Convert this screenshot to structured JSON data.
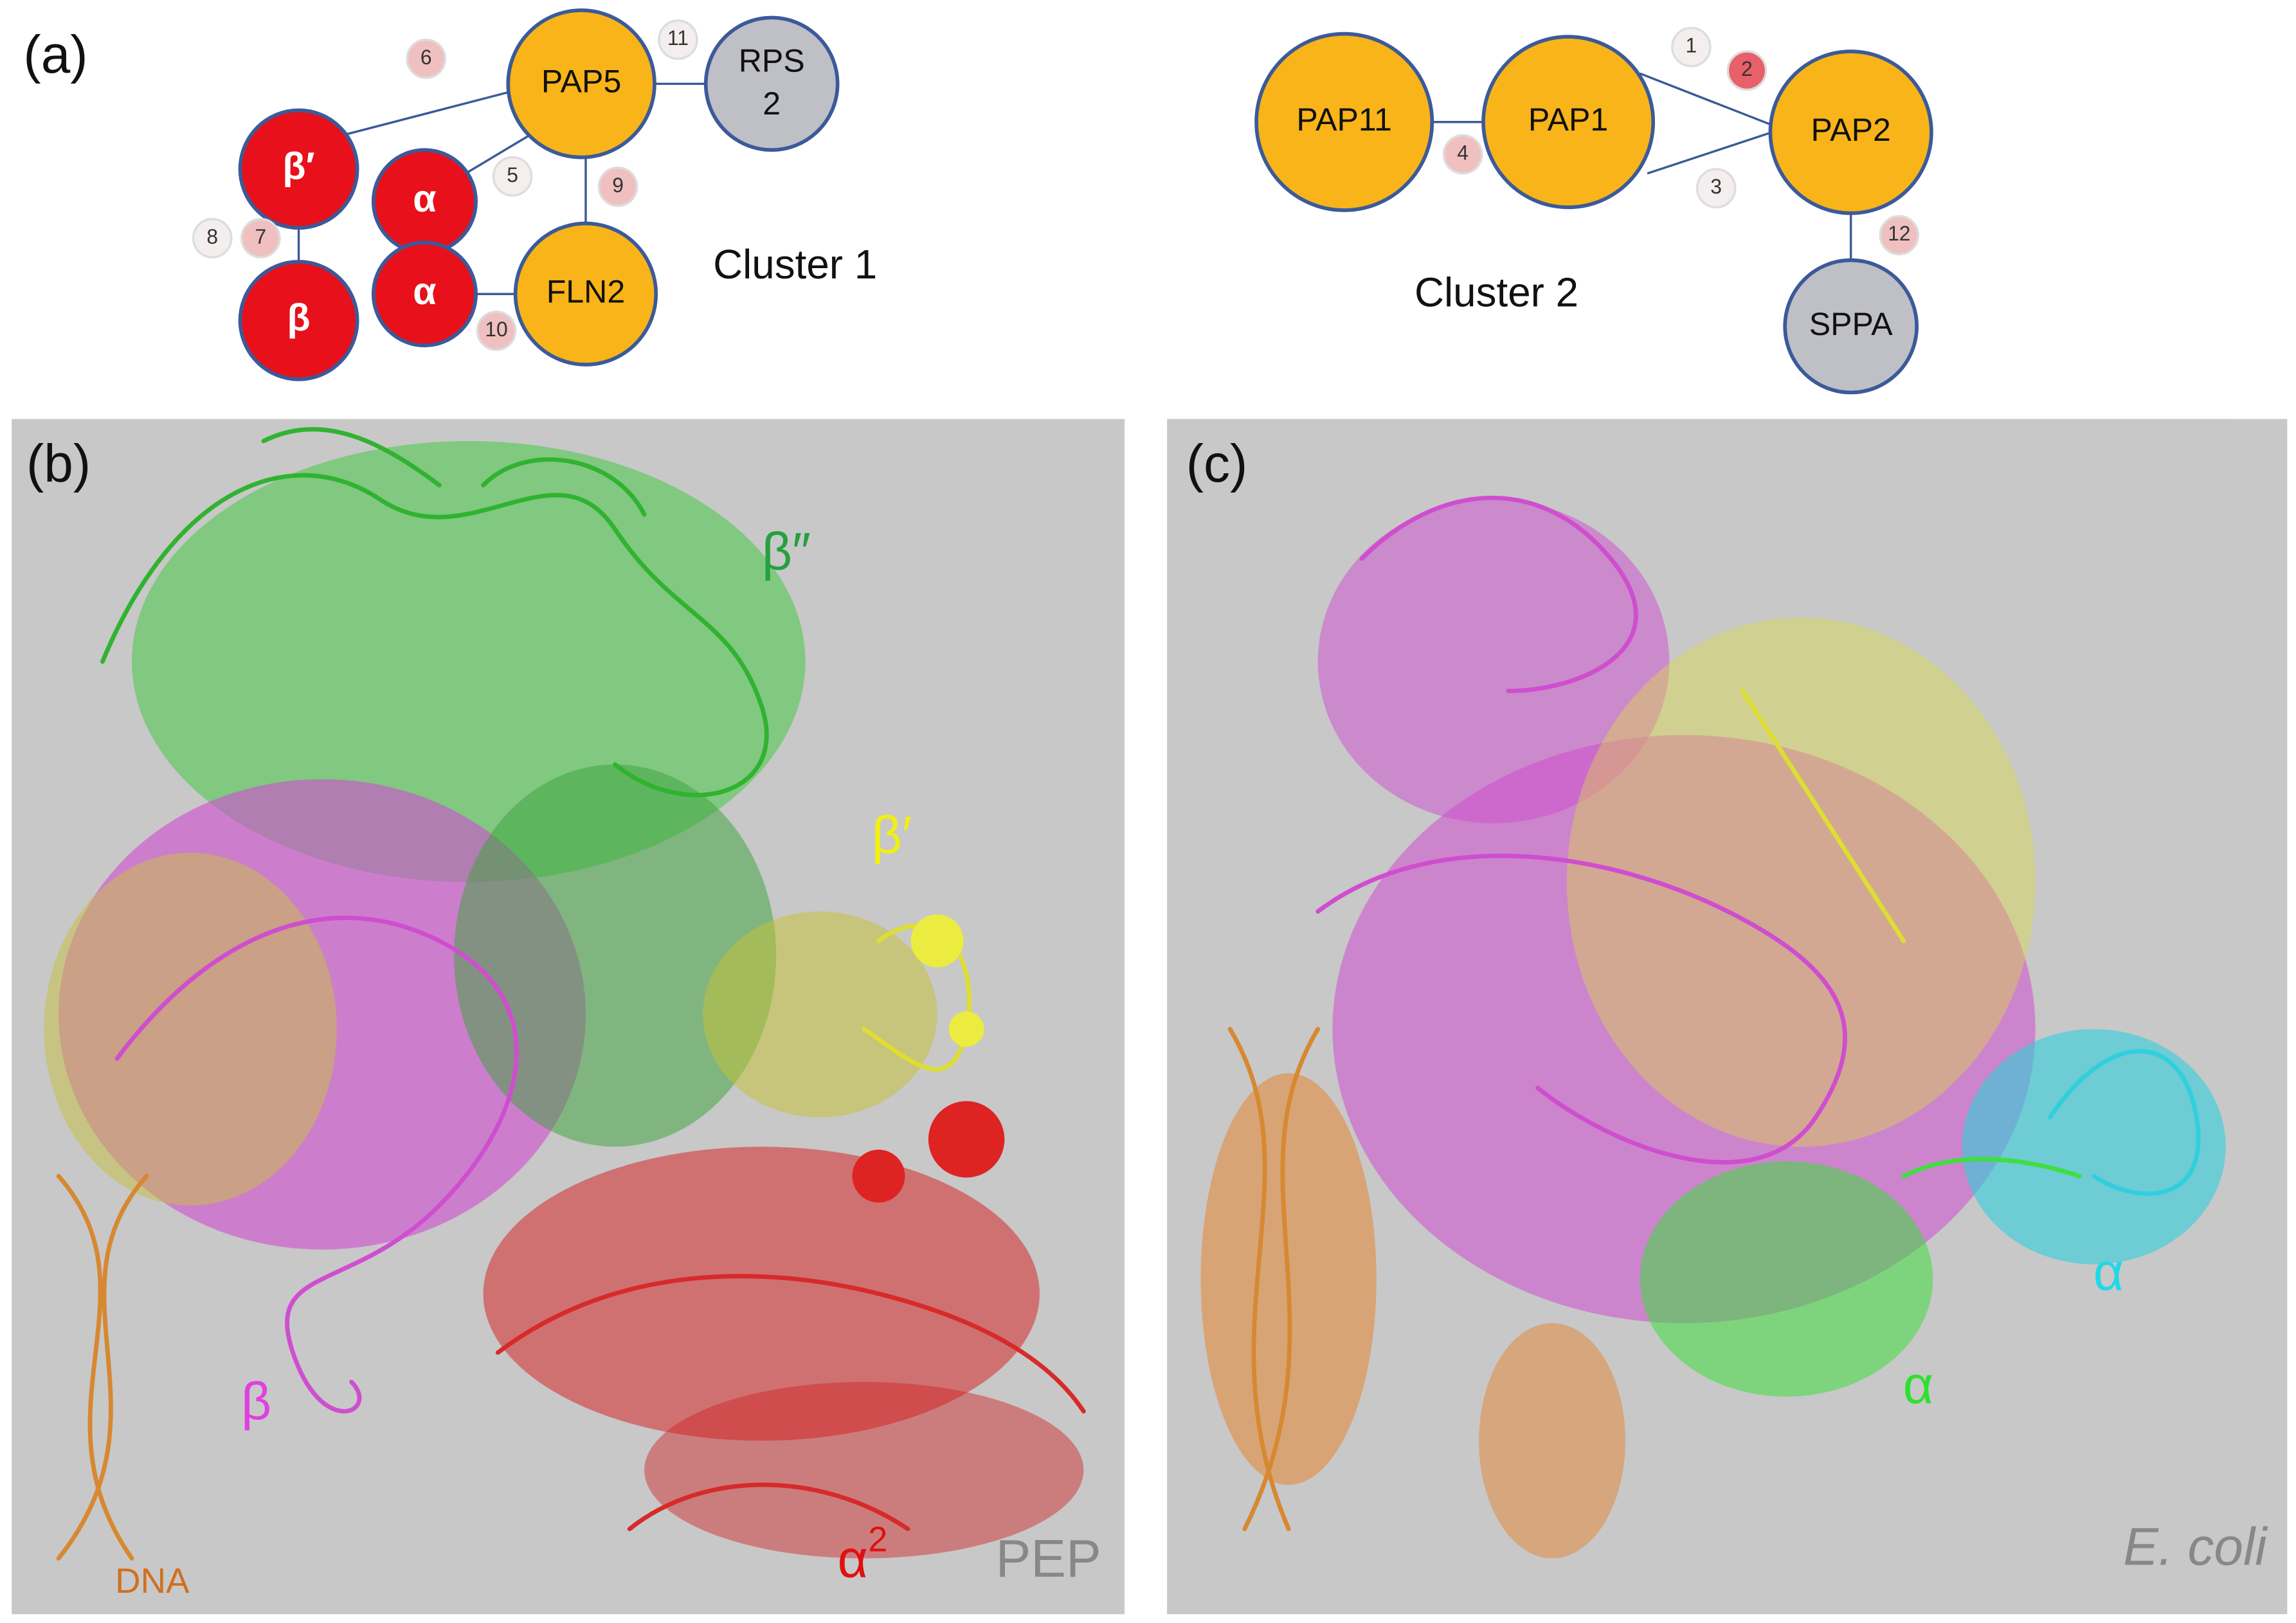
{
  "panel_a": {
    "label": "(a)",
    "nodes": [
      {
        "lines": [
          "PAP5"
        ]
      },
      {
        "lines": [
          "RPS",
          "2"
        ]
      },
      {
        "lines": [
          "β′"
        ]
      },
      {
        "lines": [
          "β"
        ]
      },
      {
        "lines": [
          "α"
        ]
      },
      {
        "lines": [
          "α"
        ]
      },
      {
        "lines": [
          "FLN2"
        ]
      },
      {
        "lines": [
          "PAP11"
        ]
      },
      {
        "lines": [
          "PAP1"
        ]
      },
      {
        "lines": [
          "PAP2"
        ]
      },
      {
        "lines": [
          "SPPA"
        ]
      }
    ],
    "badges": [
      "1",
      "2",
      "3",
      "4",
      "5",
      "6",
      "7",
      "8",
      "9",
      "10",
      "11",
      "12"
    ],
    "clusters": [
      "Cluster 1",
      "Cluster 2"
    ]
  },
  "panel_b": {
    "label": "(b)",
    "beta_double_prime": "β″",
    "beta_prime": "β′",
    "beta": "β",
    "alpha": "α",
    "alpha_sup": "2",
    "dna": "DNA",
    "name": "PEP"
  },
  "panel_c": {
    "label": "(c)",
    "alpha_cyan": "α",
    "alpha_green": "α",
    "name": "E. coli"
  }
}
